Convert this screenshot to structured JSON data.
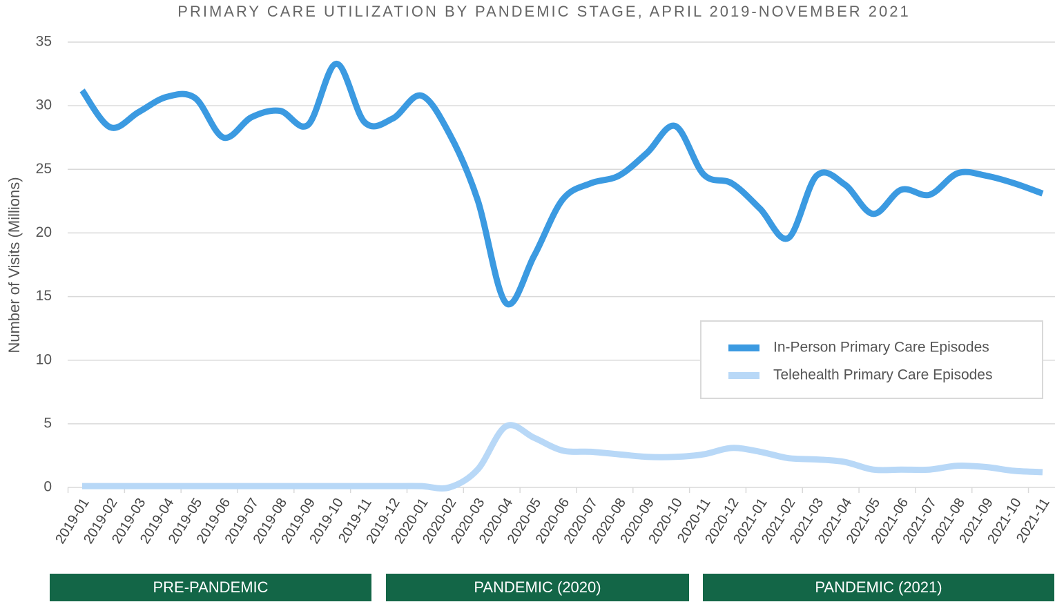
{
  "chart_data": {
    "type": "line",
    "title": "PRIMARY CARE UTILIZATION BY PANDEMIC STAGE, APRIL 2019-NOVEMBER 2021",
    "y_label": "Number of Visits (Millions)",
    "categories": [
      "2019-01",
      "2019-02",
      "2019-03",
      "2019-04",
      "2019-05",
      "2019-06",
      "2019-07",
      "2019-08",
      "2019-09",
      "2019-10",
      "2019-11",
      "2019-12",
      "2020-01",
      "2020-02",
      "2020-03",
      "2020-04",
      "2020-05",
      "2020-06",
      "2020-07",
      "2020-08",
      "2020-09",
      "2020-10",
      "2020-11",
      "2020-12",
      "2021-01",
      "2021-02",
      "2021-03",
      "2021-04",
      "2021-05",
      "2021-06",
      "2021-07",
      "2021-08",
      "2021-09",
      "2021-10",
      "2021-11"
    ],
    "series": [
      {
        "name": "In-Person Primary Care Episodes",
        "color": "#3b9ae1",
        "values": [
          31.2,
          28.3,
          29.5,
          30.7,
          30.6,
          27.5,
          29.1,
          29.6,
          28.5,
          33.3,
          28.7,
          29.0,
          30.8,
          27.8,
          22.6,
          14.5,
          18.2,
          22.6,
          23.9,
          24.5,
          26.3,
          28.4,
          24.6,
          23.9,
          21.9,
          19.6,
          24.5,
          23.8,
          21.5,
          23.4,
          23.0,
          24.7,
          24.5,
          23.9,
          23.1
        ]
      },
      {
        "name": "Telehealth Primary Care Episodes",
        "color": "#b8d8f7",
        "values": [
          0.1,
          0.1,
          0.1,
          0.1,
          0.1,
          0.1,
          0.1,
          0.1,
          0.1,
          0.1,
          0.1,
          0.1,
          0.1,
          0.0,
          1.4,
          4.8,
          3.9,
          2.9,
          2.8,
          2.6,
          2.4,
          2.4,
          2.6,
          3.1,
          2.8,
          2.3,
          2.2,
          2.0,
          1.4,
          1.4,
          1.4,
          1.7,
          1.6,
          1.3,
          1.2
        ]
      }
    ],
    "ylim": [
      0,
      35
    ],
    "yticks": [
      0,
      5,
      10,
      15,
      20,
      25,
      30,
      35
    ],
    "grid": true,
    "legend": "right",
    "stages": [
      "PRE-PANDEMIC",
      "PANDEMIC (2020)",
      "PANDEMIC (2021)"
    ]
  }
}
